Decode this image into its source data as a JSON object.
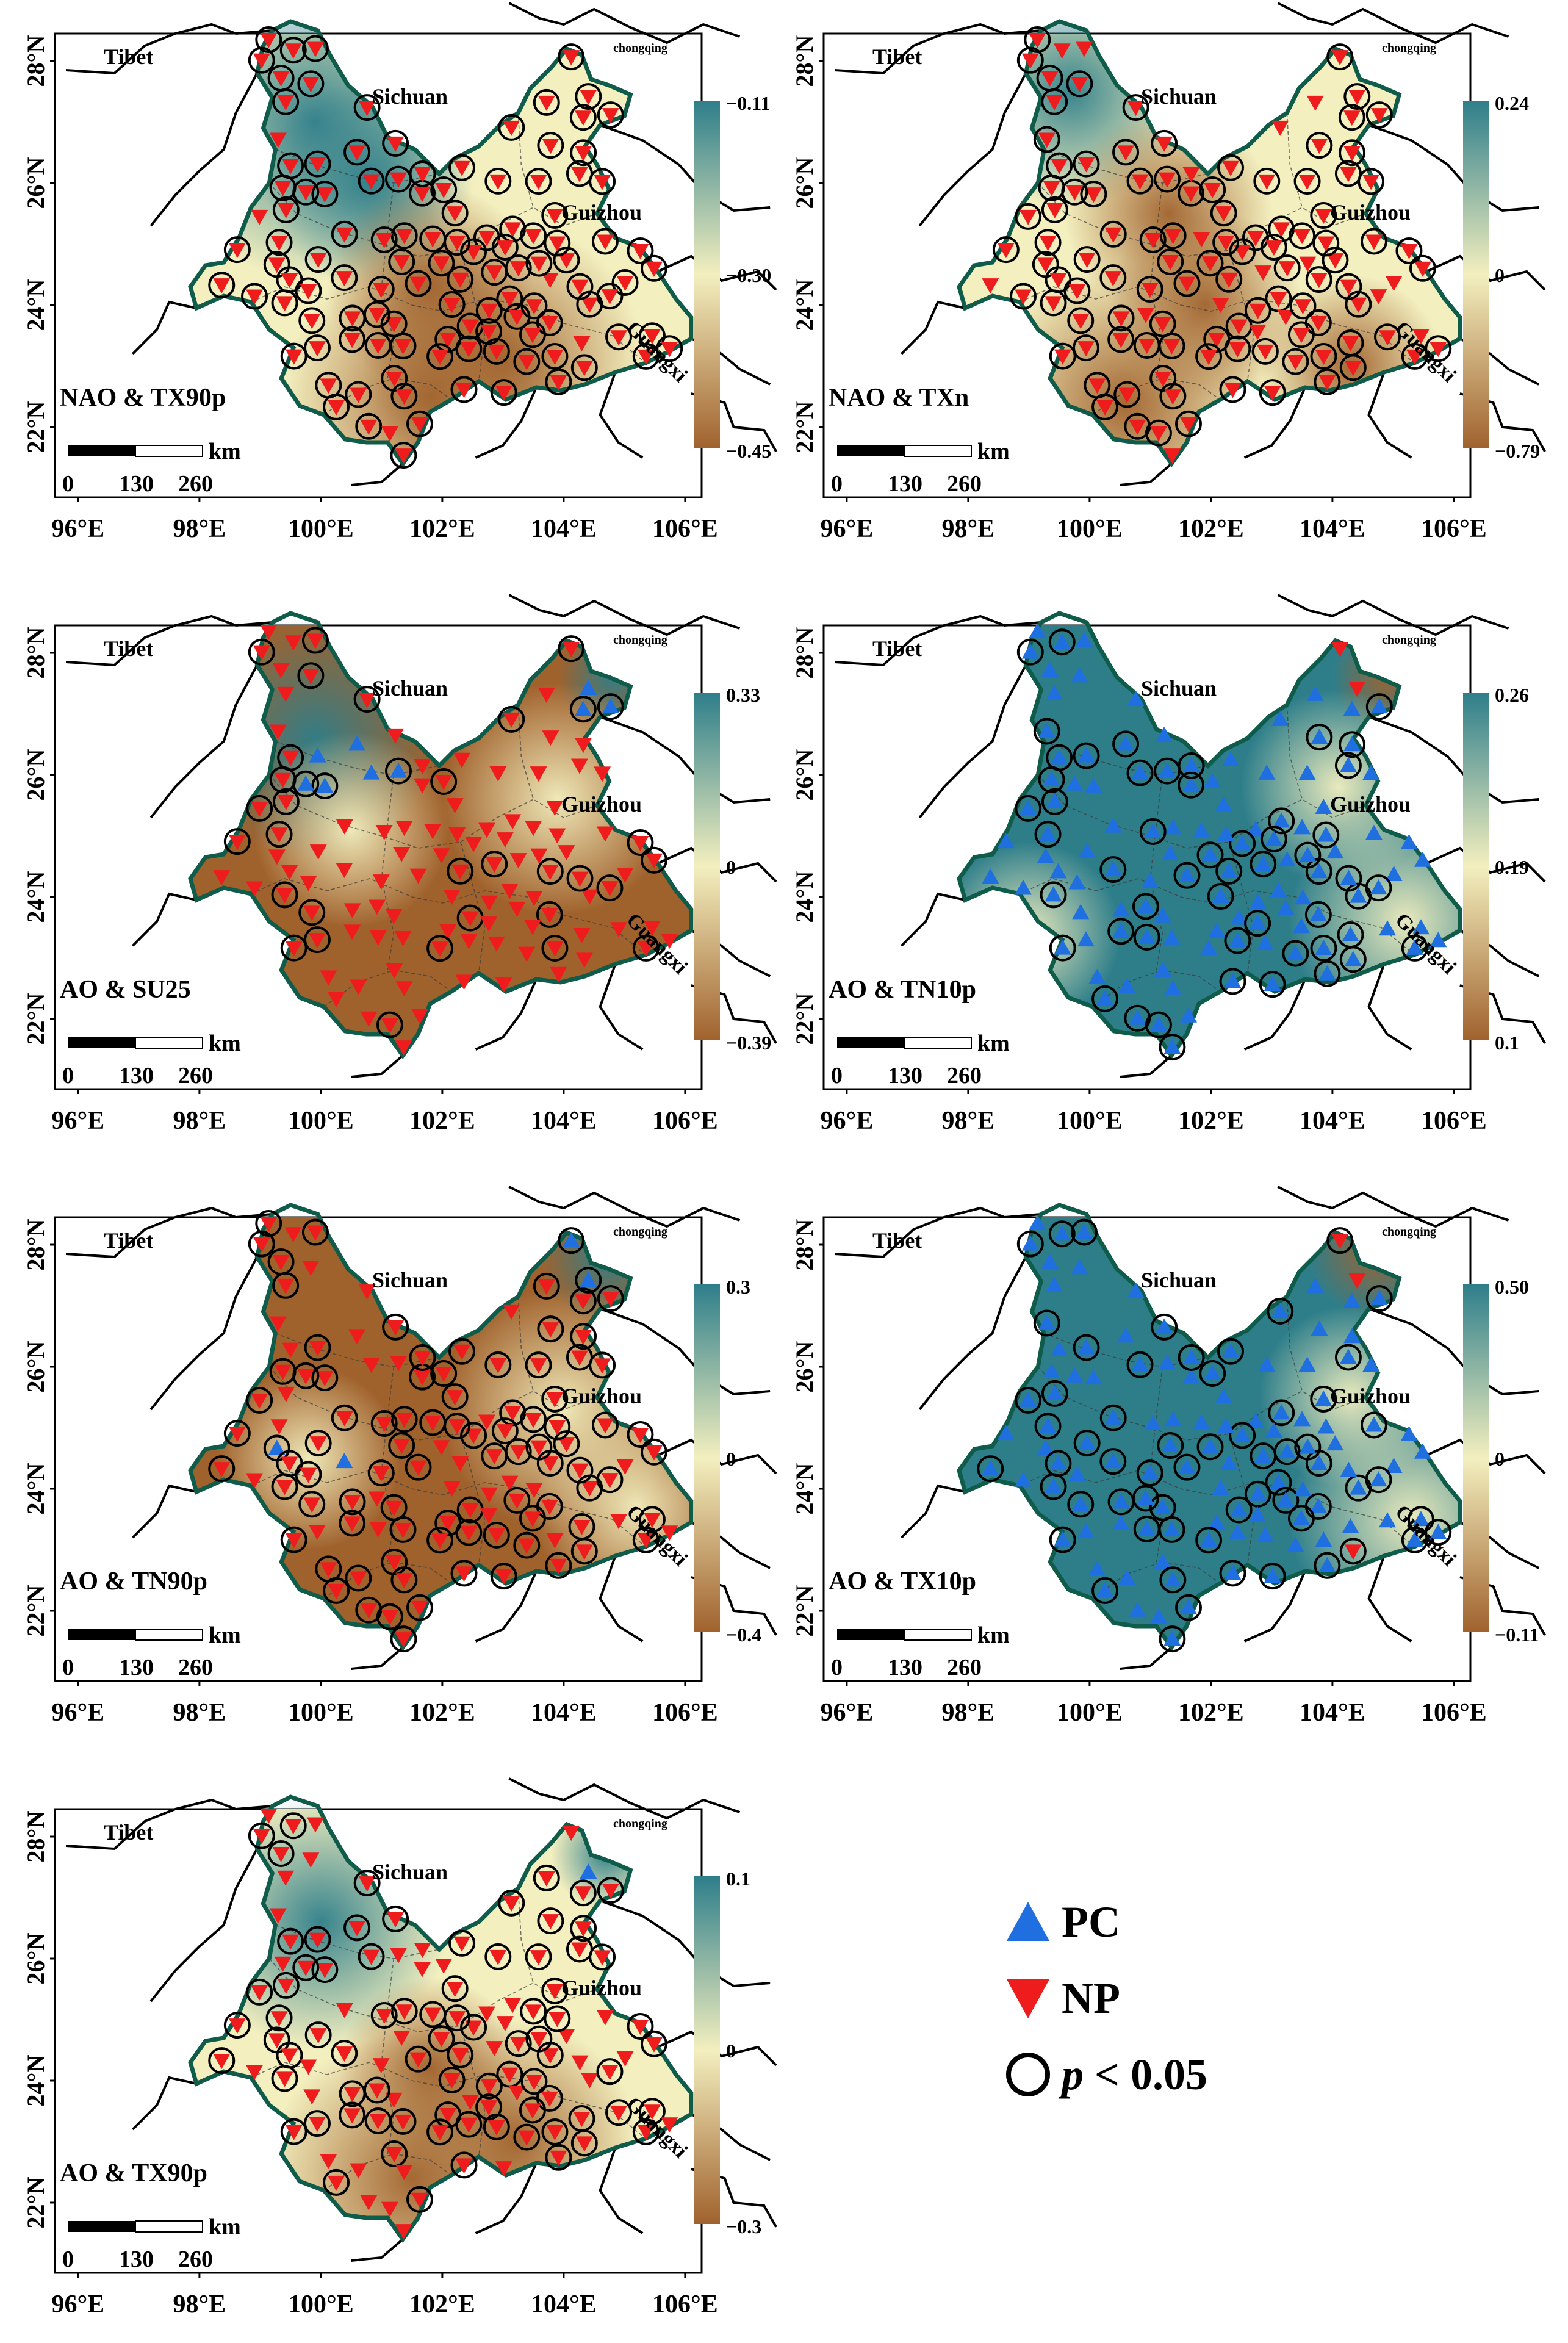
{
  "map_labels": {
    "tibet": "Tibet",
    "sichuan": "Sichuan",
    "guizhou": "Guizhou",
    "guangxi": "Guangxi",
    "chongqing": "chongqing"
  },
  "axes": {
    "lat_ticks": [
      "22°N",
      "24°N",
      "26°N",
      "28°N"
    ],
    "lon_ticks": [
      "96°E",
      "98°E",
      "100°E",
      "102°E",
      "104°E",
      "106°E"
    ]
  },
  "scale_bar": {
    "unit": "km",
    "ticks": [
      "0",
      "130",
      "260"
    ]
  },
  "colors": {
    "ramp_low": "#a0622d",
    "ramp_mid": "#f3efbf",
    "ramp_high": "#2e7e8a",
    "pc": "#1f6fe0",
    "np": "#ee1c1c",
    "border": "#0f5c4a"
  },
  "panels": [
    {
      "title": "NAO & TX90p",
      "cb_max": "−0.11",
      "cb_mid": "−0.30",
      "cb_min": "−0.45",
      "marker": "np"
    },
    {
      "title": "NAO & TXn",
      "cb_max": "0.24",
      "cb_mid": "0",
      "cb_min": "−0.79",
      "marker": "np"
    },
    {
      "title": "AO & SU25",
      "cb_max": "0.33",
      "cb_mid": "0",
      "cb_min": "−0.39",
      "marker": "np"
    },
    {
      "title": "AO & TN10p",
      "cb_max": "0.26",
      "cb_mid": "0.19",
      "cb_min": "0.1",
      "marker": "pc"
    },
    {
      "title": "AO & TN90p",
      "cb_max": "0.3",
      "cb_mid": "0",
      "cb_min": "−0.4",
      "marker": "np"
    },
    {
      "title": "AO & TX10p",
      "cb_max": "0.50",
      "cb_mid": "0",
      "cb_min": "−0.11",
      "marker": "pc"
    },
    {
      "title": "AO & TX90p",
      "cb_max": "0.1",
      "cb_mid": "0",
      "cb_min": "−0.3",
      "marker": "np"
    }
  ],
  "legend": {
    "pc_label": "PC",
    "np_label": "NP",
    "p_symbol": "p",
    "p_rest": " < 0.05"
  }
}
